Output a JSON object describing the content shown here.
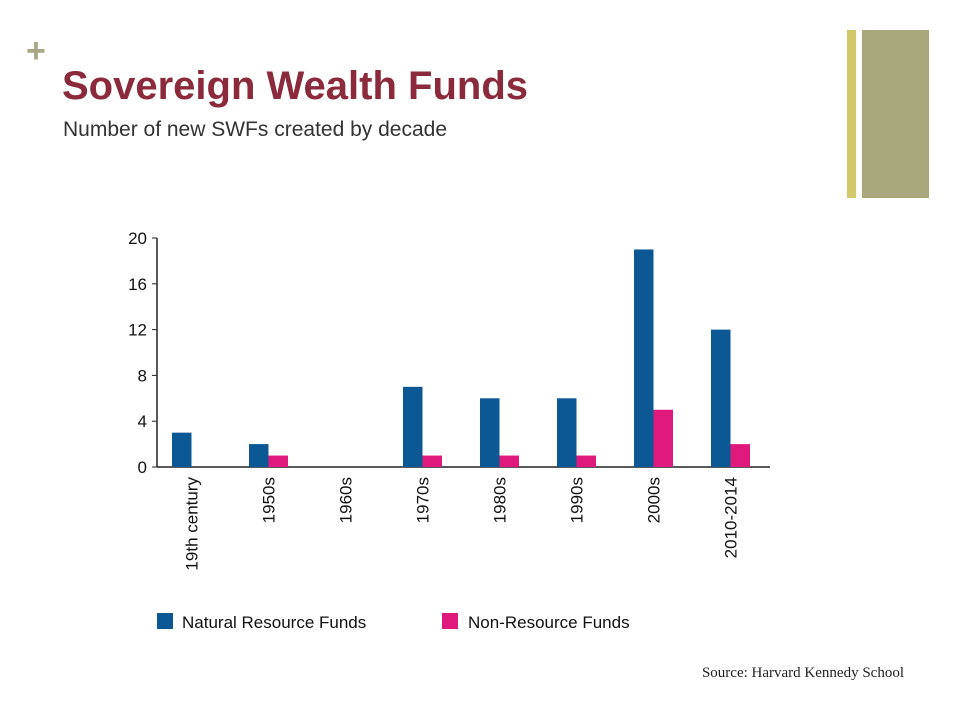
{
  "slide": {
    "plus_symbol": "+",
    "title": "Sovereign Wealth Funds",
    "subtitle": "Number of new SWFs created by decade",
    "source": "Source:  Harvard Kennedy School",
    "accent_colors": {
      "title": "#8b2a3c",
      "decor_thin": "#d2c86a",
      "decor_thick": "#a9a77c"
    }
  },
  "chart_data": {
    "type": "bar",
    "title": "",
    "xlabel": "",
    "ylabel": "",
    "categories": [
      "19th century",
      "1950s",
      "1960s",
      "1970s",
      "1980s",
      "1990s",
      "2000s",
      "2010-2014"
    ],
    "series": [
      {
        "name": "Natural Resource Funds",
        "color": "#0b5895",
        "values": [
          3,
          2,
          0,
          7,
          6,
          6,
          19,
          12
        ]
      },
      {
        "name": "Non-Resource Funds",
        "color": "#e0197d",
        "values": [
          0,
          1,
          0,
          1,
          1,
          1,
          5,
          2
        ]
      }
    ],
    "ylim": [
      0,
      20
    ],
    "yticks": [
      0,
      4,
      8,
      12,
      16,
      20
    ],
    "grid": false,
    "legend_position": "bottom"
  }
}
